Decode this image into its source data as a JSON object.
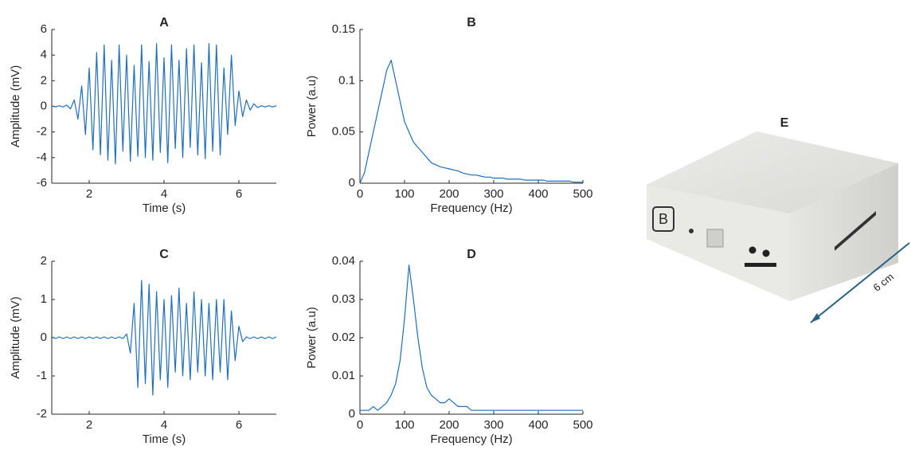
{
  "chart_data": [
    {
      "type": "line",
      "title": "A",
      "xlabel": "Time (s)",
      "ylabel": "Amplitude (mV)",
      "color": "#1f6fbf",
      "xlim": [
        1,
        7
      ],
      "xticks": [
        2,
        4,
        6
      ],
      "ylim": [
        -6,
        6
      ],
      "yticks": [
        -6,
        -4,
        -2,
        0,
        2,
        4,
        6
      ],
      "x": [
        1.0,
        1.1,
        1.2,
        1.3,
        1.4,
        1.5,
        1.6,
        1.7,
        1.8,
        1.9,
        2.0,
        2.1,
        2.2,
        2.3,
        2.4,
        2.5,
        2.6,
        2.7,
        2.8,
        2.9,
        3.0,
        3.1,
        3.2,
        3.3,
        3.4,
        3.5,
        3.6,
        3.7,
        3.8,
        3.9,
        4.0,
        4.1,
        4.2,
        4.3,
        4.4,
        4.5,
        4.6,
        4.7,
        4.8,
        4.9,
        5.0,
        5.1,
        5.2,
        5.3,
        5.4,
        5.5,
        5.6,
        5.7,
        5.8,
        5.9,
        6.0,
        6.1,
        6.2,
        6.3,
        6.4,
        6.5,
        6.6,
        6.7,
        6.8,
        6.9,
        7.0
      ],
      "values": [
        0.05,
        -0.05,
        0.05,
        -0.05,
        0.1,
        -0.2,
        0.5,
        -1,
        1.6,
        -2.2,
        3,
        -3.4,
        4.2,
        -3.8,
        4.8,
        -4.2,
        3.6,
        -4.5,
        4.8,
        -3.5,
        4,
        -4.3,
        3.2,
        -3.9,
        4.8,
        -4,
        3.5,
        -4.2,
        4.9,
        -3.6,
        3.8,
        -4.4,
        4.8,
        -3.3,
        3.6,
        -4,
        4.5,
        -3.2,
        4.8,
        -3.8,
        3.4,
        -4.1,
        4.9,
        -3.5,
        4.8,
        -3.8,
        3,
        -2.2,
        4,
        -1.5,
        1.2,
        -0.8,
        0.5,
        -0.3,
        0.2,
        -0.1,
        0.05,
        -0.05,
        0.05,
        -0.05,
        0.05
      ]
    },
    {
      "type": "line",
      "title": "B",
      "xlabel": "Frequency (Hz)",
      "ylabel": "Power (a.u)",
      "color": "#1f6fbf",
      "xlim": [
        0,
        500
      ],
      "xticks": [
        0,
        100,
        200,
        300,
        400,
        500
      ],
      "ylim": [
        0,
        0.15
      ],
      "yticks": [
        0,
        0.05,
        0.1,
        0.15
      ],
      "x": [
        0,
        10,
        20,
        30,
        40,
        50,
        60,
        70,
        80,
        90,
        100,
        110,
        120,
        130,
        140,
        150,
        160,
        170,
        180,
        190,
        200,
        210,
        220,
        230,
        240,
        250,
        260,
        270,
        280,
        290,
        300,
        310,
        320,
        330,
        340,
        350,
        360,
        370,
        380,
        390,
        400,
        410,
        420,
        430,
        440,
        450,
        460,
        470,
        480,
        490,
        500
      ],
      "values": [
        0,
        0.01,
        0.03,
        0.05,
        0.07,
        0.09,
        0.11,
        0.12,
        0.1,
        0.08,
        0.06,
        0.05,
        0.04,
        0.035,
        0.03,
        0.025,
        0.02,
        0.018,
        0.016,
        0.015,
        0.014,
        0.013,
        0.012,
        0.01,
        0.009,
        0.008,
        0.008,
        0.007,
        0.006,
        0.006,
        0.005,
        0.005,
        0.005,
        0.004,
        0.004,
        0.004,
        0.004,
        0.003,
        0.003,
        0.003,
        0.003,
        0.003,
        0.002,
        0.002,
        0.002,
        0.002,
        0.002,
        0.002,
        0.001,
        0.001,
        0.001
      ]
    },
    {
      "type": "line",
      "title": "C",
      "xlabel": "Time (s)",
      "ylabel": "Amplitude (mV)",
      "color": "#1f6fbf",
      "xlim": [
        1,
        7
      ],
      "xticks": [
        2,
        4,
        6
      ],
      "ylim": [
        -2,
        2
      ],
      "yticks": [
        -2,
        -1,
        0,
        1,
        2
      ],
      "x": [
        1.0,
        1.1,
        1.2,
        1.3,
        1.4,
        1.5,
        1.6,
        1.7,
        1.8,
        1.9,
        2.0,
        2.1,
        2.2,
        2.3,
        2.4,
        2.5,
        2.6,
        2.7,
        2.8,
        2.9,
        3.0,
        3.1,
        3.2,
        3.3,
        3.4,
        3.5,
        3.6,
        3.7,
        3.8,
        3.9,
        4.0,
        4.1,
        4.2,
        4.3,
        4.4,
        4.5,
        4.6,
        4.7,
        4.8,
        4.9,
        5.0,
        5.1,
        5.2,
        5.3,
        5.4,
        5.5,
        5.6,
        5.7,
        5.8,
        5.9,
        6.0,
        6.1,
        6.2,
        6.3,
        6.4,
        6.5,
        6.6,
        6.7,
        6.8,
        6.9,
        7.0
      ],
      "values": [
        0.02,
        -0.02,
        0.02,
        -0.02,
        0.02,
        -0.02,
        0.02,
        -0.02,
        0.02,
        -0.02,
        0.02,
        -0.02,
        0.02,
        -0.02,
        0.02,
        -0.02,
        0.02,
        -0.02,
        0.02,
        -0.02,
        0.1,
        -0.4,
        0.9,
        -1.3,
        1.5,
        -1.2,
        1.4,
        -1.5,
        1.2,
        -1.1,
        1.0,
        -1.3,
        1.1,
        -0.9,
        1.3,
        -1.0,
        0.9,
        -1.1,
        1.2,
        -0.9,
        1.0,
        -1.0,
        0.9,
        -1.1,
        1.0,
        -0.9,
        1.0,
        -1.1,
        0.7,
        -0.6,
        0.3,
        -0.1,
        0.02,
        -0.02,
        0.02,
        -0.02,
        0.02,
        -0.02,
        0.02,
        -0.02,
        0.02
      ]
    },
    {
      "type": "line",
      "title": "D",
      "xlabel": "Frequency (Hz)",
      "ylabel": "Power (a.u)",
      "color": "#1f6fbf",
      "xlim": [
        0,
        500
      ],
      "xticks": [
        0,
        100,
        200,
        300,
        400,
        500
      ],
      "ylim": [
        0,
        0.04
      ],
      "yticks": [
        0,
        0.01,
        0.02,
        0.03,
        0.04
      ],
      "x": [
        0,
        10,
        20,
        30,
        40,
        50,
        60,
        70,
        80,
        90,
        100,
        110,
        120,
        130,
        140,
        150,
        160,
        170,
        180,
        190,
        200,
        210,
        220,
        230,
        240,
        250,
        260,
        270,
        280,
        290,
        300,
        310,
        320,
        330,
        340,
        350,
        360,
        370,
        380,
        390,
        400,
        410,
        420,
        430,
        440,
        450,
        460,
        470,
        480,
        490,
        500
      ],
      "values": [
        0.001,
        0.001,
        0.001,
        0.002,
        0.001,
        0.002,
        0.003,
        0.005,
        0.008,
        0.014,
        0.025,
        0.039,
        0.03,
        0.02,
        0.012,
        0.007,
        0.005,
        0.004,
        0.003,
        0.003,
        0.004,
        0.003,
        0.002,
        0.002,
        0.002,
        0.001,
        0.001,
        0.001,
        0.001,
        0.001,
        0.001,
        0.001,
        0.001,
        0.001,
        0.001,
        0.001,
        0.001,
        0.001,
        0.001,
        0.001,
        0.001,
        0.001,
        0.001,
        0.001,
        0.001,
        0.001,
        0.001,
        0.001,
        0.001,
        0.001,
        0.001
      ]
    }
  ],
  "photo": {
    "label": "E",
    "device_mark": "B",
    "dimension": "6 cm"
  }
}
